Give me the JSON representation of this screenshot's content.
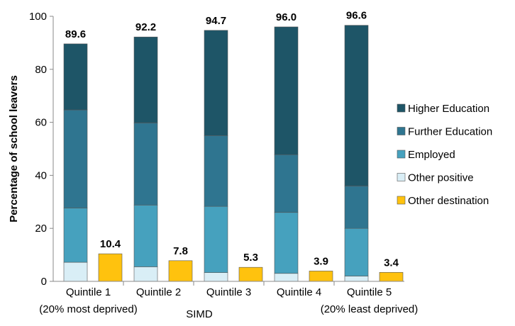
{
  "chart_data": {
    "type": "bar",
    "stacked": true,
    "categories": [
      "Quintile 1",
      "Quintile 2",
      "Quintile 3",
      "Quintile 4",
      "Quintile 5"
    ],
    "category_sublabels": [
      "(20% most deprived)",
      "",
      "",
      "",
      "(20% least deprived)"
    ],
    "stacked_series": [
      {
        "name": "Other positive",
        "color": "#d9eef6",
        "values": [
          7.2,
          5.5,
          3.3,
          3.0,
          2.0
        ]
      },
      {
        "name": "Employed",
        "color": "#46a1be",
        "values": [
          20.5,
          23.3,
          25.0,
          23.0,
          18.0
        ]
      },
      {
        "name": "Further Education",
        "color": "#2f7590",
        "values": [
          37.0,
          31.0,
          26.7,
          21.8,
          16.0
        ]
      },
      {
        "name": "Higher Education",
        "color": "#1e5567",
        "values": [
          24.9,
          32.4,
          39.7,
          48.2,
          60.6
        ]
      }
    ],
    "stack_totals": [
      "89.6",
      "92.2",
      "94.7",
      "96.0",
      "96.6"
    ],
    "other_series": {
      "name": "Other destination",
      "color": "#ffc20e",
      "values": [
        10.4,
        7.8,
        5.3,
        3.9,
        3.4
      ]
    },
    "other_labels": [
      "10.4",
      "7.8",
      "5.3",
      "3.9",
      "3.4"
    ],
    "legend": [
      "Higher Education",
      "Further Education",
      "Employed",
      "Other positive",
      "Other destination"
    ],
    "legend_colors": [
      "#1e5567",
      "#2f7590",
      "#46a1be",
      "#d9eef6",
      "#ffc20e"
    ],
    "yticks": [
      "0",
      "20",
      "40",
      "60",
      "80",
      "100"
    ],
    "ytick_values": [
      0,
      20,
      40,
      60,
      80,
      100
    ],
    "ylim": [
      0,
      100
    ],
    "ylabel": "Percentage of school leavers",
    "xlabel": "SIMD",
    "legend_position": "right",
    "grid": false
  }
}
